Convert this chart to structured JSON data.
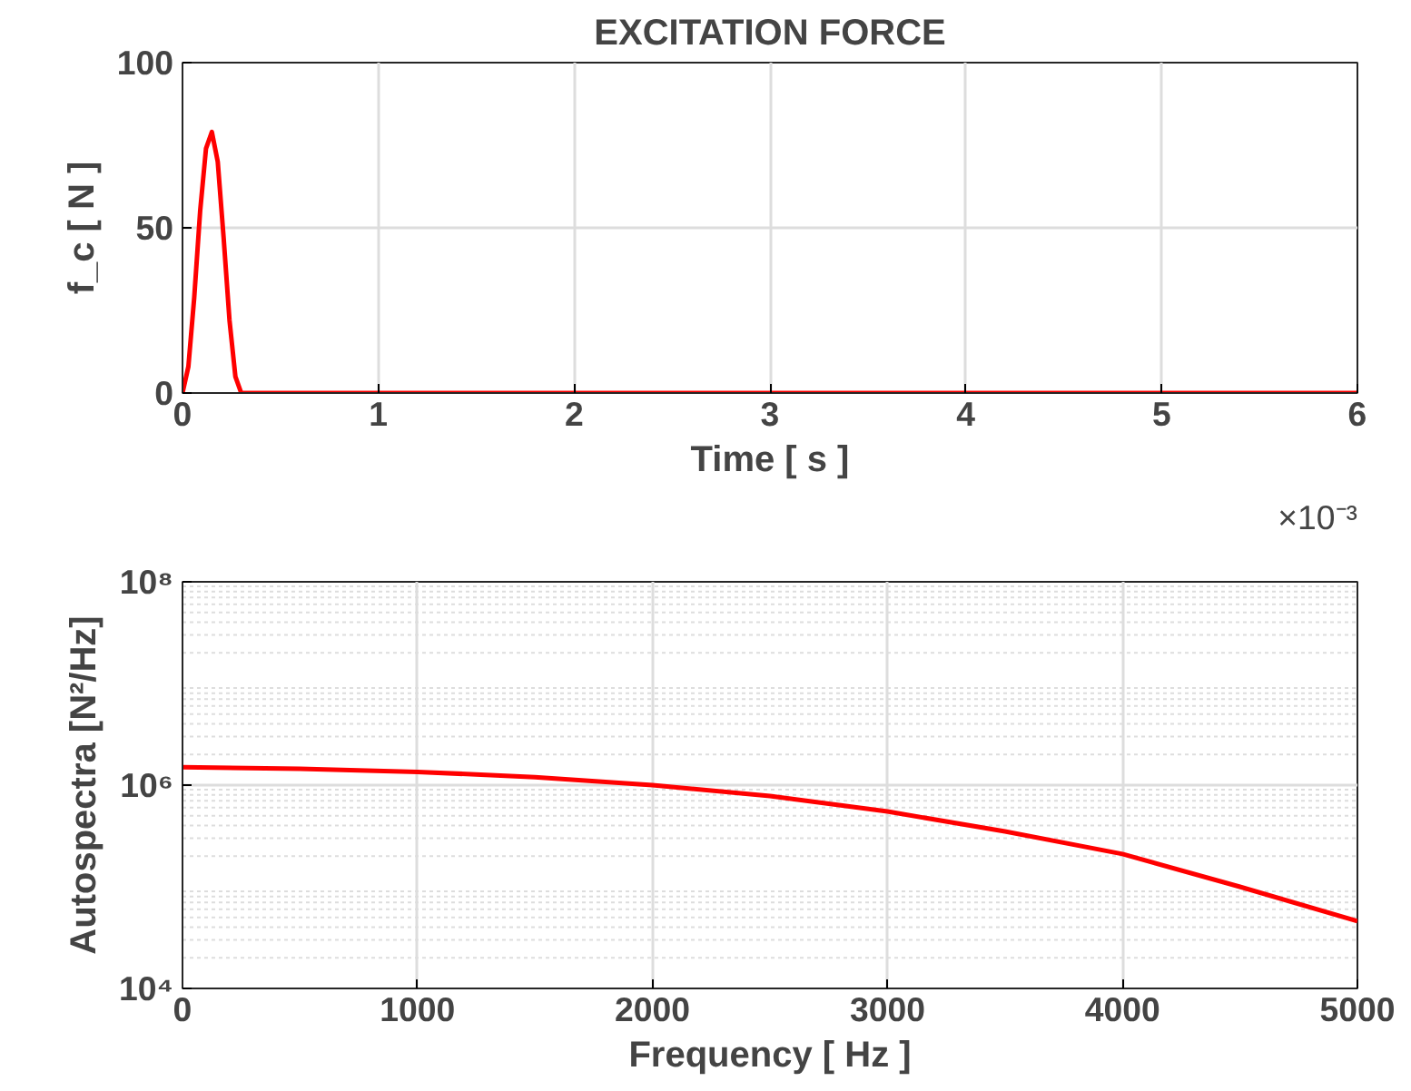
{
  "chart_data": [
    {
      "type": "line",
      "title": "EXCITATION FORCE",
      "xlabel": "Time [ s ]",
      "ylabel": "f_c [ N ]",
      "x": [
        0,
        0.03,
        0.06,
        0.09,
        0.12,
        0.15,
        0.18,
        0.21,
        0.24,
        0.27,
        0.3,
        6
      ],
      "series": [
        {
          "color": "#ff0000",
          "values": [
            0,
            8,
            29,
            55,
            74,
            79,
            70,
            47,
            22,
            5,
            0,
            0
          ]
        }
      ],
      "xlim": [
        0,
        6
      ],
      "xticks": [
        0,
        1,
        2,
        3,
        4,
        5,
        6
      ],
      "ylim": [
        0,
        100
      ],
      "yticks": [
        0,
        50,
        100
      ],
      "grid": true,
      "annotations": [
        "×10⁻³"
      ]
    },
    {
      "type": "line",
      "xlabel": "Frequency [ Hz ]",
      "ylabel": "Autospectra [N²/Hz]",
      "x": [
        0,
        500,
        1000,
        1500,
        2000,
        2500,
        3000,
        3500,
        4000,
        4500,
        5000
      ],
      "series": [
        {
          "color": "#ff0000",
          "values": [
            1500000,
            1450000,
            1350000,
            1200000,
            1000000,
            780000,
            550000,
            350000,
            210000,
            100000,
            46000
          ]
        }
      ],
      "xlim": [
        0,
        5000
      ],
      "xticks": [
        0,
        1000,
        2000,
        3000,
        4000,
        5000
      ],
      "ylim": [
        10000,
        100000000
      ],
      "yticks": [
        {
          "value": 10000,
          "label": "10⁴"
        },
        {
          "value": 1000000,
          "label": "10⁶"
        },
        {
          "value": 100000000,
          "label": "10⁸"
        }
      ],
      "log": "y",
      "grid": true
    }
  ]
}
